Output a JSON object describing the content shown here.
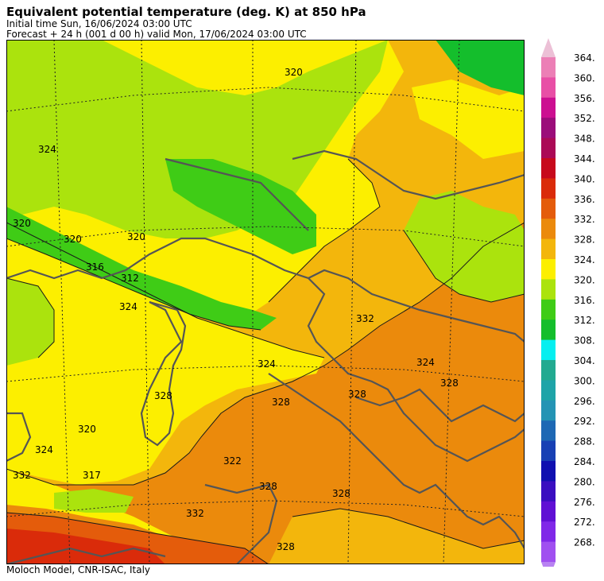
{
  "header": {
    "title": "Equivalent potential temperature (deg. K) at 850 hPa",
    "initial_time": "Initial time  Sun, 16/06/2024  03:00 UTC",
    "forecast": "Forecast  +  24 h  (001 d 00 h)  valid Mon, 17/06/2024 03:00 UTC"
  },
  "footer": {
    "credit": "Moloch Model, CNR-ISAC, Italy"
  },
  "map": {
    "contour_labels": [
      "320",
      "320",
      "320",
      "320",
      "320",
      "324",
      "324",
      "324",
      "324",
      "324",
      "312",
      "316",
      "317",
      "322",
      "328",
      "328",
      "328",
      "328",
      "328",
      "328",
      "328",
      "332",
      "332",
      "332"
    ]
  },
  "colorbar": {
    "levels": [
      "364.",
      "360.",
      "356.",
      "352.",
      "348.",
      "344.",
      "340.",
      "336.",
      "332.",
      "328.",
      "324.",
      "320.",
      "316.",
      "312.",
      "308.",
      "304.",
      "300.",
      "296.",
      "292.",
      "288.",
      "284.",
      "280.",
      "276.",
      "272.",
      "268."
    ],
    "colors": [
      "#ec7fb6",
      "#e84fa6",
      "#cc0f91",
      "#9b0d7a",
      "#ab0a56",
      "#c70a1c",
      "#da2b0a",
      "#e45c0b",
      "#eb8a0c",
      "#f3b60c",
      "#fcef00",
      "#abe30d",
      "#3fcc16",
      "#14be2c",
      "#05eff0",
      "#22aa90",
      "#1ea4a8",
      "#2494b4",
      "#1e68b4",
      "#1840b4",
      "#1010b0",
      "#3a0ec0",
      "#6010d4",
      "#8028e8",
      "#a050f0"
    ],
    "top_color": "#ecc0d6",
    "bottom_color": "#b882f2"
  }
}
